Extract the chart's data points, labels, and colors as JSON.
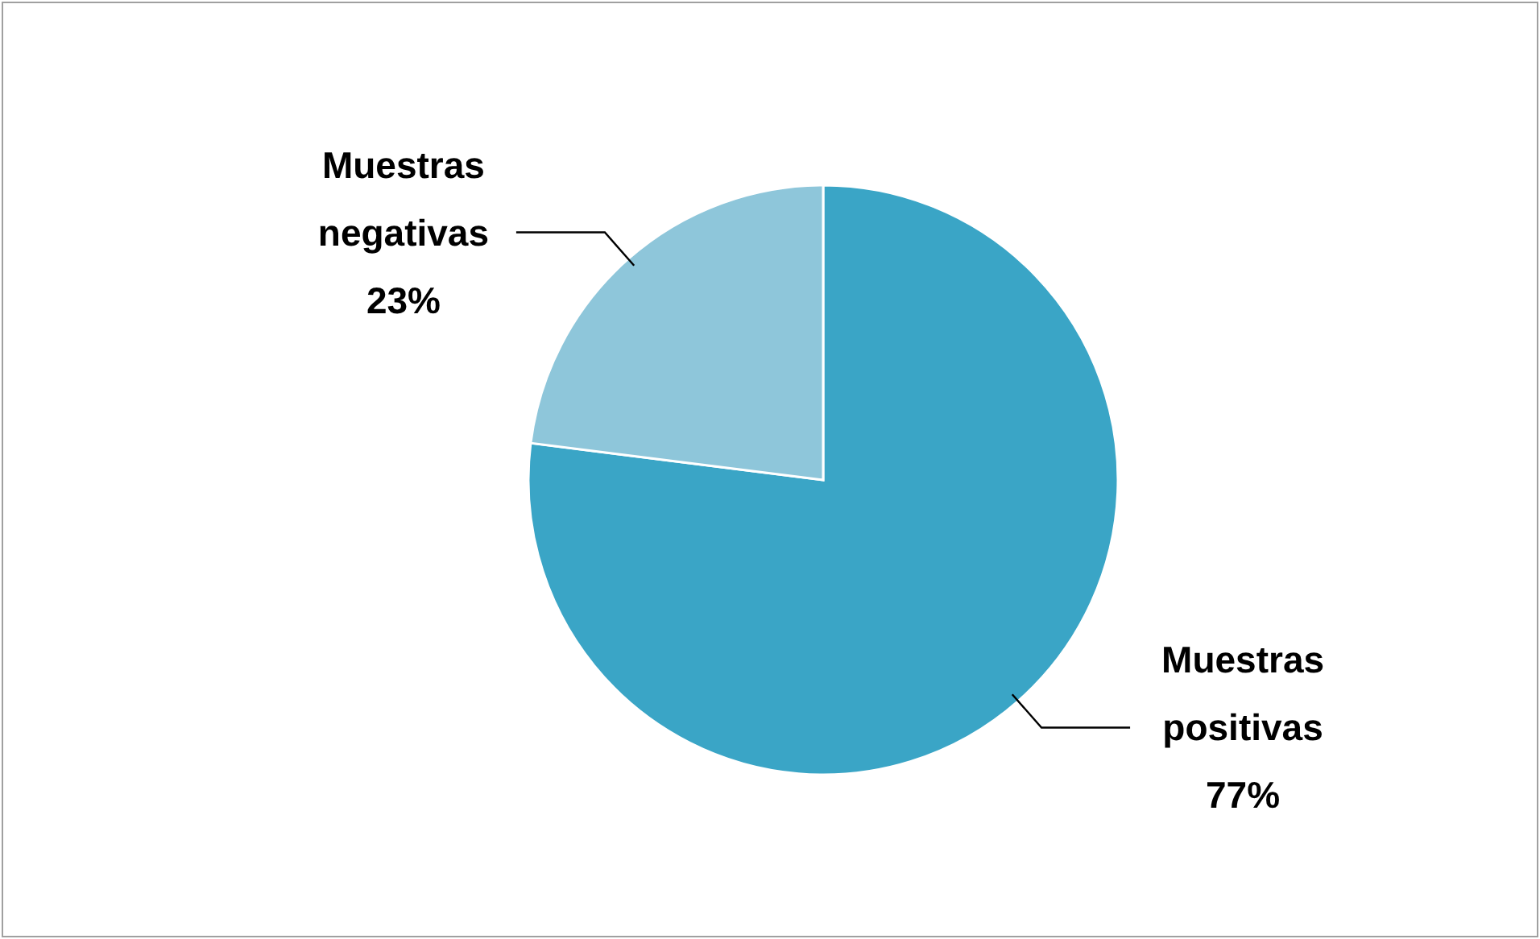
{
  "chart_data": {
    "type": "pie",
    "categories": [
      "Muestras positivas",
      "Muestras negativas"
    ],
    "values": [
      77,
      23
    ],
    "colors": [
      "#3aa5c6",
      "#8ec6da"
    ],
    "value_labels": [
      "77%",
      "23%"
    ]
  }
}
